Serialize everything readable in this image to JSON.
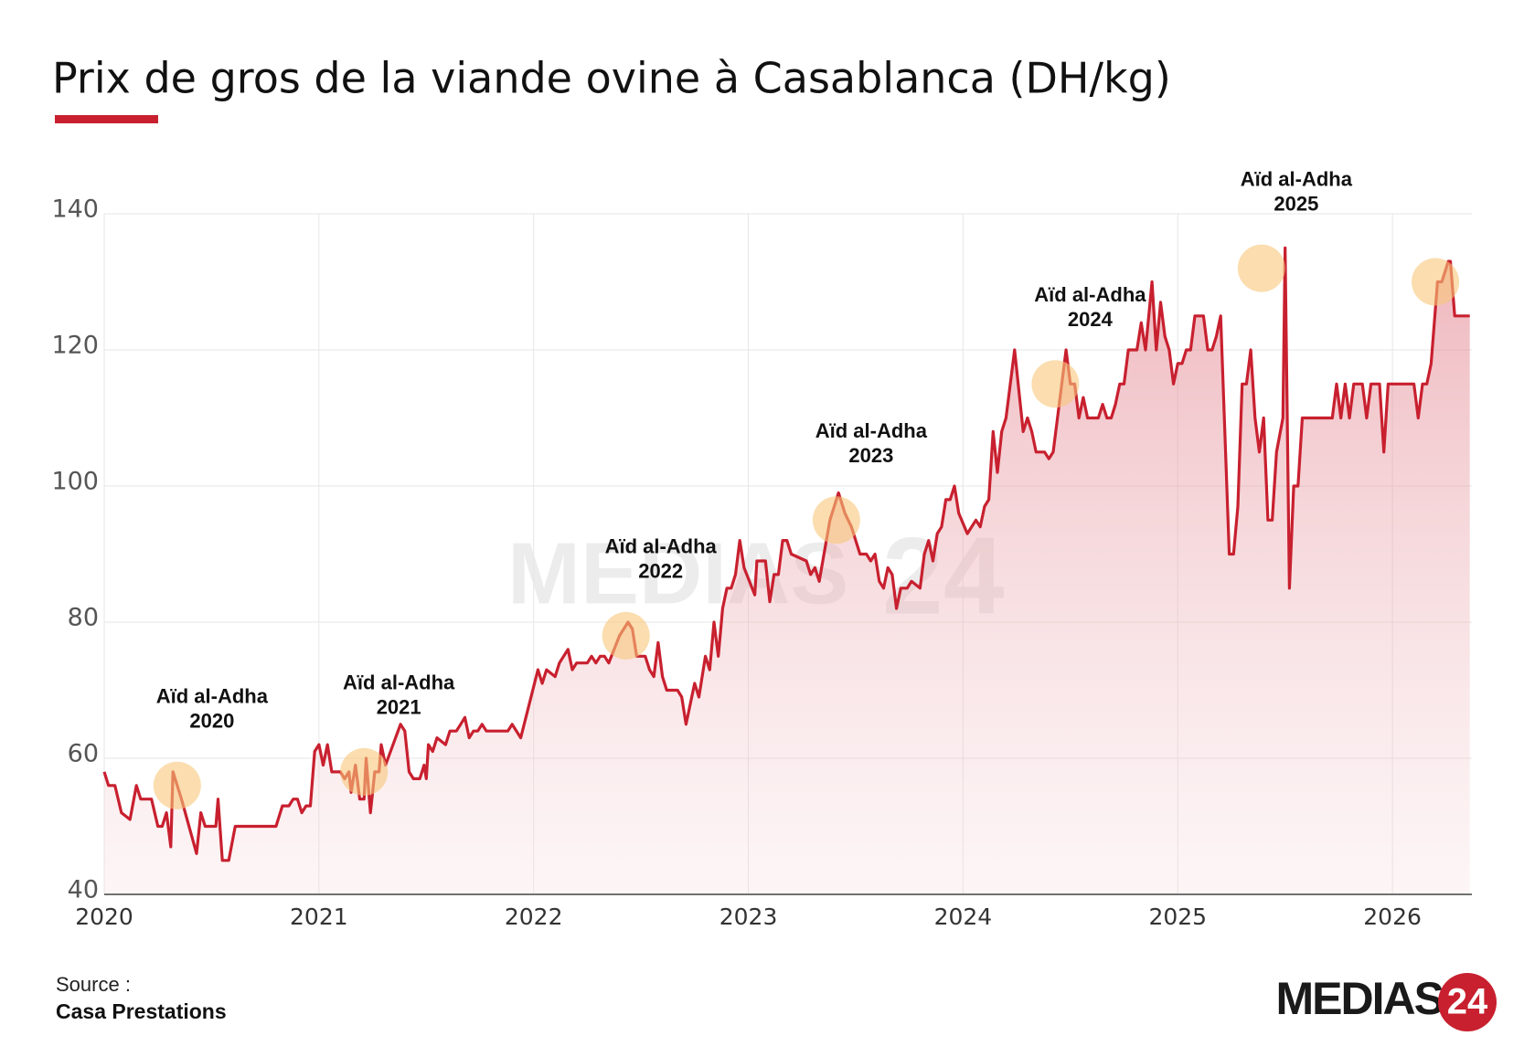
{
  "chart_data": {
    "type": "line",
    "title": "Prix de gros de la viande ovine à Casablanca (DH/kg)",
    "source_label": "Source :",
    "source": "Casa Prestations",
    "logo": "MEDIAS",
    "logo_badge": "24",
    "color": "#c8202f",
    "fill": true,
    "grid": true,
    "xlim": [
      2020,
      2026.37
    ],
    "xticks": [
      2020,
      2021,
      2022,
      2023,
      2024,
      2025,
      2026
    ],
    "ylim": [
      40,
      140
    ],
    "yticks": [
      40,
      60,
      80,
      100,
      120,
      140
    ],
    "x": [
      2020.0,
      2020.02,
      2020.05,
      2020.08,
      2020.12,
      2020.15,
      2020.17,
      2020.22,
      2020.25,
      2020.27,
      2020.29,
      2020.31,
      2020.32,
      2020.36,
      2020.43,
      2020.45,
      2020.47,
      2020.52,
      2020.53,
      2020.55,
      2020.58,
      2020.61,
      2020.75,
      2020.8,
      2020.83,
      2020.86,
      2020.88,
      2020.9,
      2020.92,
      2020.94,
      2020.96,
      2020.98,
      2021.0,
      2021.02,
      2021.04,
      2021.06,
      2021.1,
      2021.12,
      2021.14,
      2021.15,
      2021.17,
      2021.19,
      2021.21,
      2021.22,
      2021.24,
      2021.26,
      2021.28,
      2021.29,
      2021.31,
      2021.38,
      2021.4,
      2021.42,
      2021.44,
      2021.47,
      2021.49,
      2021.5,
      2021.51,
      2021.53,
      2021.55,
      2021.59,
      2021.61,
      2021.64,
      2021.66,
      2021.68,
      2021.7,
      2021.72,
      2021.74,
      2021.76,
      2021.78,
      2021.85,
      2021.88,
      2021.9,
      2021.94,
      2021.98,
      2022.02,
      2022.04,
      2022.06,
      2022.1,
      2022.12,
      2022.16,
      2022.18,
      2022.2,
      2022.25,
      2022.27,
      2022.29,
      2022.31,
      2022.33,
      2022.35,
      2022.4,
      2022.44,
      2022.46,
      2022.48,
      2022.52,
      2022.54,
      2022.56,
      2022.58,
      2022.6,
      2022.62,
      2022.67,
      2022.69,
      2022.71,
      2022.73,
      2022.75,
      2022.77,
      2022.8,
      2022.82,
      2022.84,
      2022.86,
      2022.88,
      2022.9,
      2022.92,
      2022.94,
      2022.96,
      2022.98,
      2023.03,
      2023.04,
      2023.08,
      2023.1,
      2023.12,
      2023.14,
      2023.16,
      2023.18,
      2023.2,
      2023.27,
      2023.29,
      2023.31,
      2023.33,
      2023.38,
      2023.42,
      2023.45,
      2023.48,
      2023.52,
      2023.55,
      2023.57,
      2023.59,
      2023.61,
      2023.63,
      2023.65,
      2023.67,
      2023.69,
      2023.71,
      2023.74,
      2023.76,
      2023.8,
      2023.82,
      2023.84,
      2023.86,
      2023.88,
      2023.9,
      2023.92,
      2023.94,
      2023.96,
      2023.98,
      2024.02,
      2024.06,
      2024.08,
      2024.1,
      2024.12,
      2024.14,
      2024.16,
      2024.18,
      2024.2,
      2024.24,
      2024.28,
      2024.3,
      2024.32,
      2024.34,
      2024.38,
      2024.4,
      2024.42,
      2024.48,
      2024.5,
      2024.52,
      2024.54,
      2024.56,
      2024.58,
      2024.63,
      2024.65,
      2024.67,
      2024.69,
      2024.71,
      2024.73,
      2024.75,
      2024.77,
      2024.81,
      2024.83,
      2024.85,
      2024.88,
      2024.9,
      2024.92,
      2024.94,
      2024.96,
      2024.98,
      2025.0,
      2025.02,
      2025.04,
      2025.06,
      2025.08,
      2025.12,
      2025.14,
      2025.16,
      2025.18,
      2025.2,
      2025.24,
      2025.26,
      2025.28,
      2025.3,
      2025.32,
      2025.34,
      2025.36,
      2025.38,
      2025.4,
      2025.42,
      2025.44,
      2025.46,
      2025.49,
      2025.5,
      2025.52,
      2025.54,
      2025.56,
      2025.58,
      2025.7,
      2025.72,
      2025.74,
      2025.76,
      2025.78,
      2025.8,
      2025.82,
      2025.86,
      2025.88,
      2025.9,
      2025.94,
      2025.96,
      2025.98,
      2026.1,
      2026.12,
      2026.14,
      2026.16,
      2026.18,
      2026.21,
      2026.23,
      2026.26,
      2026.27,
      2026.29,
      2026.36
    ],
    "values": [
      58,
      56,
      56,
      52,
      51,
      56,
      54,
      54,
      50,
      50,
      52,
      47,
      58,
      54,
      46,
      52,
      50,
      50,
      54,
      45,
      45,
      50,
      50,
      50,
      53,
      53,
      54,
      54,
      52,
      53,
      53,
      61,
      62,
      59,
      62,
      58,
      58,
      57,
      58,
      55,
      59,
      54,
      54,
      60,
      52,
      58,
      58,
      62,
      59,
      65,
      64,
      58,
      57,
      57,
      59,
      57,
      62,
      61,
      63,
      62,
      64,
      64,
      65,
      66,
      63,
      64,
      64,
      65,
      64,
      64,
      64,
      65,
      63,
      68,
      73,
      71,
      73,
      72,
      74,
      76,
      73,
      74,
      74,
      75,
      74,
      75,
      75,
      74,
      78,
      80,
      79,
      75,
      75,
      73,
      72,
      77,
      72,
      70,
      70,
      69,
      65,
      68,
      71,
      69,
      75,
      73,
      80,
      75,
      82,
      85,
      85,
      87,
      92,
      88,
      84,
      89,
      89,
      83,
      87,
      87,
      92,
      92,
      90,
      89,
      87,
      88,
      86,
      95,
      99,
      96,
      94,
      90,
      90,
      89,
      90,
      86,
      85,
      88,
      87,
      82,
      85,
      85,
      86,
      85,
      90,
      92,
      89,
      93,
      94,
      98,
      98,
      100,
      96,
      93,
      95,
      94,
      97,
      98,
      108,
      102,
      108,
      110,
      120,
      108,
      110,
      108,
      105,
      105,
      104,
      105,
      120,
      115,
      115,
      110,
      113,
      110,
      110,
      112,
      110,
      110,
      112,
      115,
      115,
      120,
      120,
      124,
      120,
      130,
      120,
      127,
      122,
      120,
      115,
      118,
      118,
      120,
      120,
      125,
      125,
      120,
      120,
      122,
      125,
      90,
      90,
      97,
      115,
      115,
      120,
      110,
      105,
      110,
      95,
      95,
      105,
      110,
      135,
      85,
      100,
      100,
      110,
      110,
      110,
      115,
      110,
      115,
      110,
      115,
      115,
      110,
      115,
      115,
      105,
      115,
      115,
      110,
      115,
      115,
      118,
      130,
      130,
      133,
      133,
      125,
      125
    ],
    "annotations": [
      {
        "text": "Aïd al-Adha",
        "year": "2020",
        "x": 2020.34,
        "y": 56
      },
      {
        "text": "Aïd al-Adha",
        "year": "2021",
        "x": 2021.21,
        "y": 58
      },
      {
        "text": "Aïd al-Adha",
        "year": "2022",
        "x": 2022.43,
        "y": 78
      },
      {
        "text": "Aïd al-Adha",
        "year": "2023",
        "x": 2023.41,
        "y": 95
      },
      {
        "text": "Aïd al-Adha",
        "year": "2024",
        "x": 2024.43,
        "y": 115
      },
      {
        "text": "Aïd al-Adha",
        "year": "2025",
        "x": 2025.39,
        "y": 132
      }
    ],
    "highlights": [
      {
        "x": 2026.2,
        "y": 130
      }
    ]
  }
}
